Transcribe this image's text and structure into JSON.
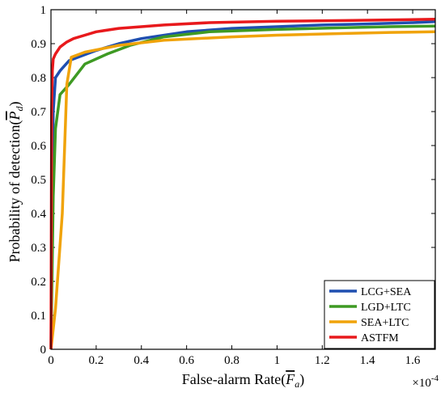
{
  "chart_data": {
    "type": "line",
    "xlabel": "False-alarm Rate(F_a)",
    "xlabel_main": "False-alarm Rate(",
    "xlabel_symbol": "F",
    "xlabel_subscript": "a",
    "xlabel_close": ")",
    "ylabel_main": "Probability of detection(",
    "ylabel_symbol": "P",
    "ylabel_subscript": "d",
    "ylabel_close": ")",
    "x_multiplier_base": "×10",
    "x_multiplier_exponent": "-4",
    "xlim": [
      0,
      1.7
    ],
    "ylim": [
      0,
      1
    ],
    "x_ticks": [
      0,
      0.2,
      0.4,
      0.6,
      0.8,
      1,
      1.2,
      1.4,
      1.6
    ],
    "x_tick_labels": [
      "0",
      "0.2",
      "0.4",
      "0.6",
      "0.8",
      "1",
      "1.2",
      "1.4",
      "1.6"
    ],
    "y_ticks": [
      0,
      0.1,
      0.2,
      0.3,
      0.4,
      0.5,
      0.6,
      0.7,
      0.8,
      0.9,
      1
    ],
    "y_tick_labels": [
      "0",
      "0.1",
      "0.2",
      "0.3",
      "0.4",
      "0.5",
      "0.6",
      "0.7",
      "0.8",
      "0.9",
      "1"
    ],
    "grid": false,
    "legend_position": "bottom-right",
    "series": [
      {
        "name": "LCG+SEA",
        "color": "#1f4fb0",
        "x": [
          0,
          0.005,
          0.01,
          0.02,
          0.04,
          0.08,
          0.12,
          0.2,
          0.3,
          0.4,
          0.6,
          0.8,
          1.0,
          1.2,
          1.4,
          1.6,
          1.7
        ],
        "y": [
          0,
          0.45,
          0.7,
          0.8,
          0.82,
          0.85,
          0.86,
          0.88,
          0.9,
          0.915,
          0.935,
          0.945,
          0.95,
          0.955,
          0.958,
          0.962,
          0.965
        ]
      },
      {
        "name": "LGD+LTC",
        "color": "#3e9a23",
        "x": [
          0,
          0.01,
          0.02,
          0.04,
          0.08,
          0.15,
          0.25,
          0.35,
          0.5,
          0.7,
          1.0,
          1.3,
          1.5,
          1.7
        ],
        "y": [
          0,
          0.45,
          0.65,
          0.75,
          0.78,
          0.84,
          0.87,
          0.895,
          0.92,
          0.935,
          0.942,
          0.947,
          0.95,
          0.952
        ]
      },
      {
        "name": "SEA+LTC",
        "color": "#f0a30a",
        "x": [
          0,
          0.02,
          0.05,
          0.07,
          0.09,
          0.15,
          0.3,
          0.5,
          0.8,
          1.0,
          1.3,
          1.5,
          1.7
        ],
        "y": [
          0,
          0.12,
          0.4,
          0.78,
          0.86,
          0.875,
          0.895,
          0.91,
          0.92,
          0.925,
          0.93,
          0.933,
          0.935
        ]
      },
      {
        "name": "ASTFM",
        "color": "#e8191c",
        "x": [
          0,
          0.003,
          0.006,
          0.01,
          0.02,
          0.04,
          0.07,
          0.1,
          0.15,
          0.2,
          0.3,
          0.5,
          0.7,
          1.0,
          1.3,
          1.5,
          1.7
        ],
        "y": [
          0,
          0.7,
          0.82,
          0.855,
          0.87,
          0.89,
          0.905,
          0.915,
          0.925,
          0.935,
          0.945,
          0.955,
          0.962,
          0.966,
          0.968,
          0.97,
          0.972
        ]
      }
    ]
  }
}
